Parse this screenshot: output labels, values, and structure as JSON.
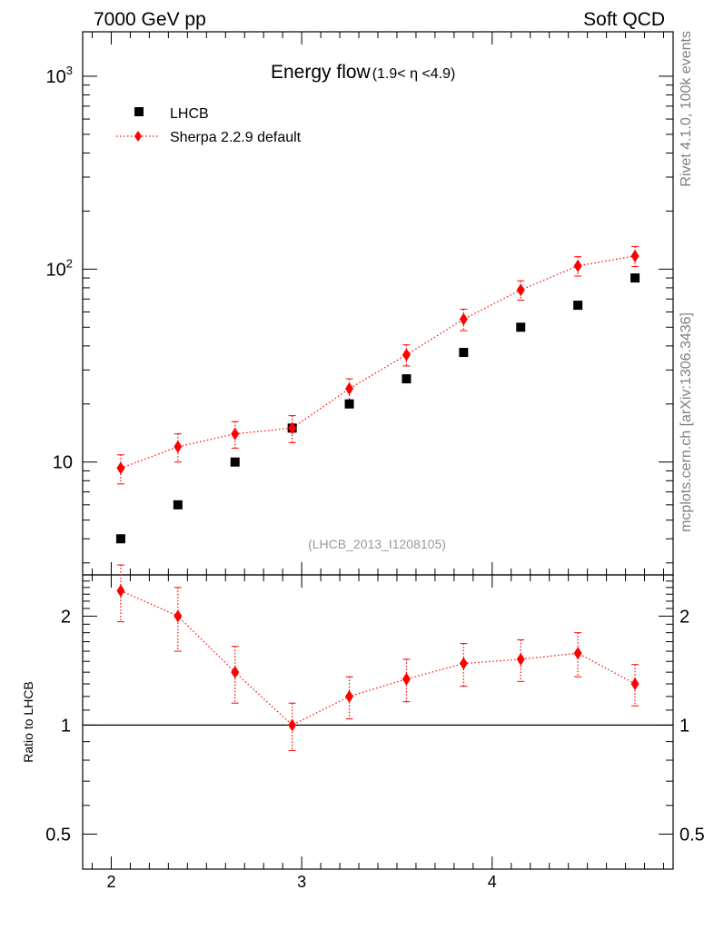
{
  "header": {
    "left": "7000 GeV pp",
    "right": "Soft QCD"
  },
  "side": {
    "rivet": "Rivet 4.1.0,  100k events",
    "mcplots": "mcplots.cern.ch [arXiv:1306.3436]"
  },
  "chart_data": {
    "type": "scatter",
    "title_main": "Energy flow",
    "title_sub": "(1.9< η <4.9)",
    "analysis_label": "(LHCB_2013_I1208105)",
    "x": [
      2.05,
      2.35,
      2.65,
      2.95,
      3.25,
      3.55,
      3.85,
      4.15,
      4.45,
      4.75
    ],
    "xlim": [
      1.85,
      4.95
    ],
    "xticks": [
      2,
      3,
      4
    ],
    "xtick_labels": [
      "2",
      "3",
      "4"
    ],
    "top_panel": {
      "yscale": "log",
      "ylim": [
        2.6,
        1700
      ],
      "ytick_labels": [
        {
          "value": 10,
          "base": "10",
          "exp": ""
        },
        {
          "value": 100,
          "base": "10",
          "exp": "2"
        },
        {
          "value": 1000,
          "base": "10",
          "exp": "3"
        }
      ]
    },
    "ratio_panel": {
      "ylabel": "Ratio to LHCB",
      "yscale": "log",
      "ylim": [
        0.4,
        2.6
      ],
      "ytick_labels": [
        {
          "value": 0.5,
          "label": "0.5"
        },
        {
          "value": 1,
          "label": "1"
        },
        {
          "value": 2,
          "label": "2"
        }
      ],
      "reference_line": 1
    },
    "series": [
      {
        "name": "LHCB",
        "marker": "square",
        "color": "#000000",
        "values": [
          4,
          6,
          10,
          15,
          20,
          27,
          37,
          50,
          65,
          90
        ]
      },
      {
        "name": "Sherpa 2.2.9 default",
        "marker": "diamond",
        "line": "dotted",
        "color": "#ff0000",
        "values": [
          9.3,
          12,
          14,
          15,
          24,
          36,
          55,
          78,
          104,
          117
        ],
        "err_low": [
          1.6,
          2,
          2.2,
          2.4,
          3,
          4.5,
          7,
          9,
          12,
          14
        ],
        "err_high": [
          1.6,
          2,
          2.2,
          2.4,
          3,
          4.5,
          7,
          9,
          12,
          14
        ],
        "ratio": [
          2.35,
          2.0,
          1.4,
          1.0,
          1.2,
          1.34,
          1.48,
          1.52,
          1.58,
          1.3
        ],
        "ratio_err_low": [
          0.42,
          0.4,
          0.25,
          0.15,
          0.16,
          0.18,
          0.2,
          0.2,
          0.22,
          0.17
        ],
        "ratio_err_high": [
          0.42,
          0.4,
          0.25,
          0.15,
          0.16,
          0.18,
          0.2,
          0.2,
          0.22,
          0.17
        ]
      }
    ]
  }
}
